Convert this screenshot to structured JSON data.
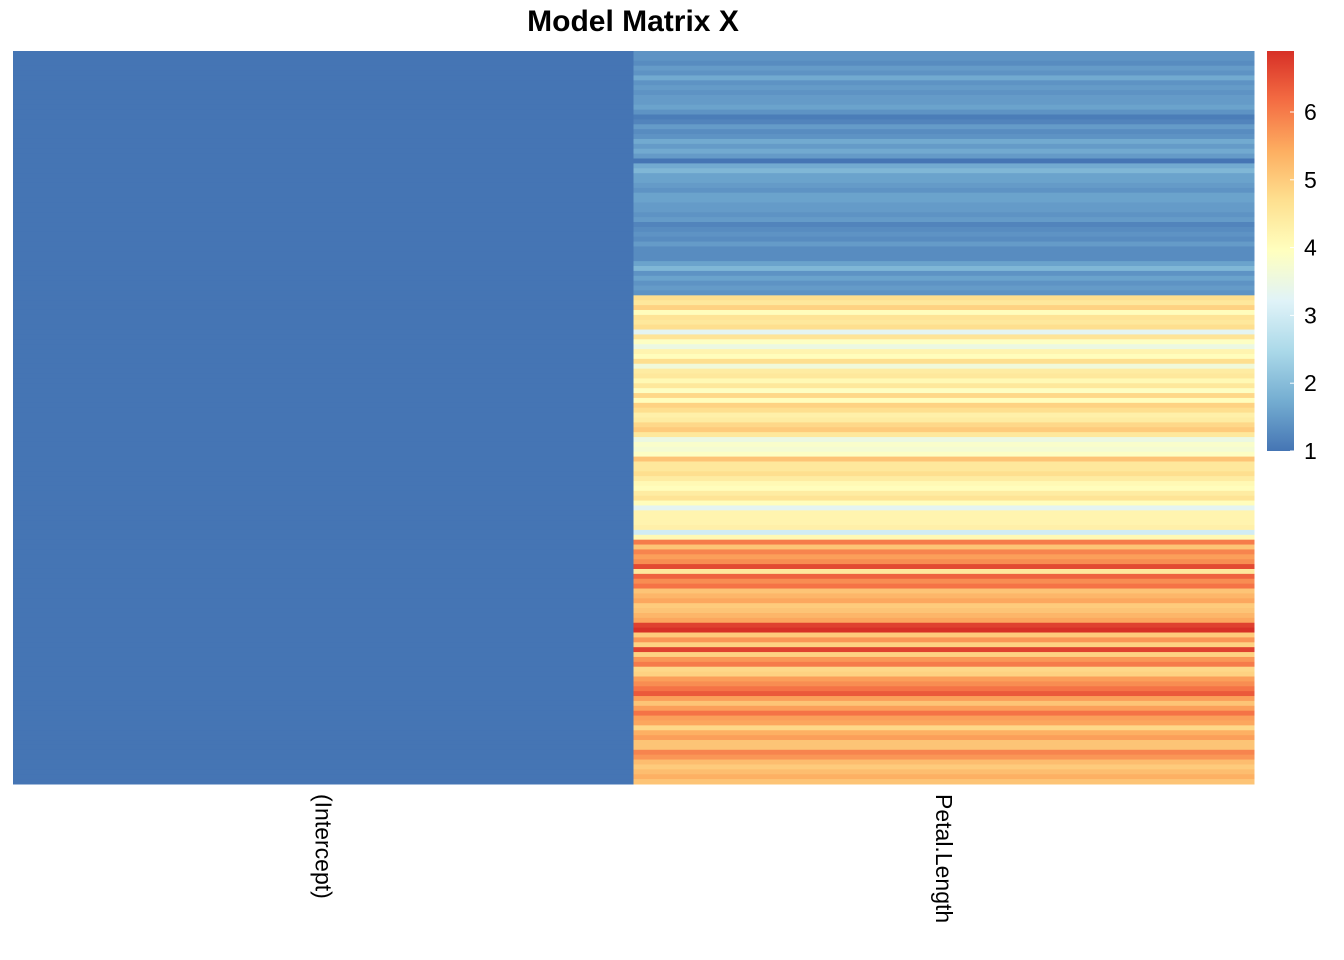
{
  "chart_data": {
    "type": "heatmap",
    "title": "Model Matrix X",
    "columns": [
      "(Intercept)",
      "Petal.Length"
    ],
    "value_range": [
      1,
      6.9
    ],
    "legend": {
      "position": "right",
      "ticks": [
        1,
        2,
        3,
        4,
        5,
        6
      ],
      "colors": [
        "#4575b4",
        "#74add1",
        "#abd9e9",
        "#e0f3f8",
        "#ffffbf",
        "#fee090",
        "#fdae61",
        "#f46d43",
        "#d73027"
      ]
    },
    "rows": 150,
    "values": {
      "(Intercept)": [
        1,
        1,
        1,
        1,
        1,
        1,
        1,
        1,
        1,
        1,
        1,
        1,
        1,
        1,
        1,
        1,
        1,
        1,
        1,
        1,
        1,
        1,
        1,
        1,
        1,
        1,
        1,
        1,
        1,
        1,
        1,
        1,
        1,
        1,
        1,
        1,
        1,
        1,
        1,
        1,
        1,
        1,
        1,
        1,
        1,
        1,
        1,
        1,
        1,
        1,
        1,
        1,
        1,
        1,
        1,
        1,
        1,
        1,
        1,
        1,
        1,
        1,
        1,
        1,
        1,
        1,
        1,
        1,
        1,
        1,
        1,
        1,
        1,
        1,
        1,
        1,
        1,
        1,
        1,
        1,
        1,
        1,
        1,
        1,
        1,
        1,
        1,
        1,
        1,
        1,
        1,
        1,
        1,
        1,
        1,
        1,
        1,
        1,
        1,
        1,
        1,
        1,
        1,
        1,
        1,
        1,
        1,
        1,
        1,
        1,
        1,
        1,
        1,
        1,
        1,
        1,
        1,
        1,
        1,
        1,
        1,
        1,
        1,
        1,
        1,
        1,
        1,
        1,
        1,
        1,
        1,
        1,
        1,
        1,
        1,
        1,
        1,
        1,
        1,
        1,
        1,
        1,
        1,
        1,
        1,
        1,
        1,
        1,
        1,
        1
      ],
      "Petal.Length": [
        1.4,
        1.4,
        1.3,
        1.5,
        1.4,
        1.7,
        1.4,
        1.5,
        1.4,
        1.5,
        1.5,
        1.6,
        1.4,
        1.1,
        1.2,
        1.5,
        1.3,
        1.4,
        1.7,
        1.5,
        1.7,
        1.5,
        1.0,
        1.7,
        1.9,
        1.6,
        1.6,
        1.5,
        1.4,
        1.6,
        1.6,
        1.5,
        1.5,
        1.4,
        1.5,
        1.2,
        1.3,
        1.4,
        1.3,
        1.5,
        1.3,
        1.3,
        1.3,
        1.6,
        1.9,
        1.4,
        1.6,
        1.4,
        1.5,
        1.4,
        4.7,
        4.5,
        4.9,
        4.0,
        4.6,
        4.5,
        4.7,
        3.3,
        4.6,
        3.9,
        3.5,
        4.2,
        4.0,
        4.7,
        3.6,
        4.4,
        4.5,
        4.1,
        4.5,
        3.9,
        4.8,
        4.0,
        4.9,
        4.7,
        4.3,
        4.4,
        4.8,
        5.0,
        4.5,
        3.5,
        3.8,
        3.7,
        3.9,
        5.1,
        4.5,
        4.5,
        4.7,
        4.4,
        4.1,
        4.0,
        4.4,
        4.6,
        4.0,
        3.3,
        4.2,
        4.2,
        4.2,
        4.3,
        3.0,
        4.1,
        6.0,
        5.1,
        5.9,
        5.6,
        5.8,
        6.6,
        4.5,
        6.3,
        5.8,
        6.1,
        5.1,
        5.3,
        5.5,
        5.0,
        5.1,
        5.3,
        5.5,
        6.7,
        6.9,
        5.0,
        5.7,
        4.9,
        6.7,
        4.9,
        5.7,
        6.0,
        4.8,
        4.9,
        5.6,
        5.8,
        6.1,
        6.4,
        5.6,
        5.1,
        5.6,
        6.1,
        5.6,
        5.5,
        4.8,
        5.4,
        5.6,
        5.1,
        5.1,
        5.9,
        5.7,
        5.2,
        5.0,
        5.2,
        5.4,
        5.1
      ]
    }
  }
}
